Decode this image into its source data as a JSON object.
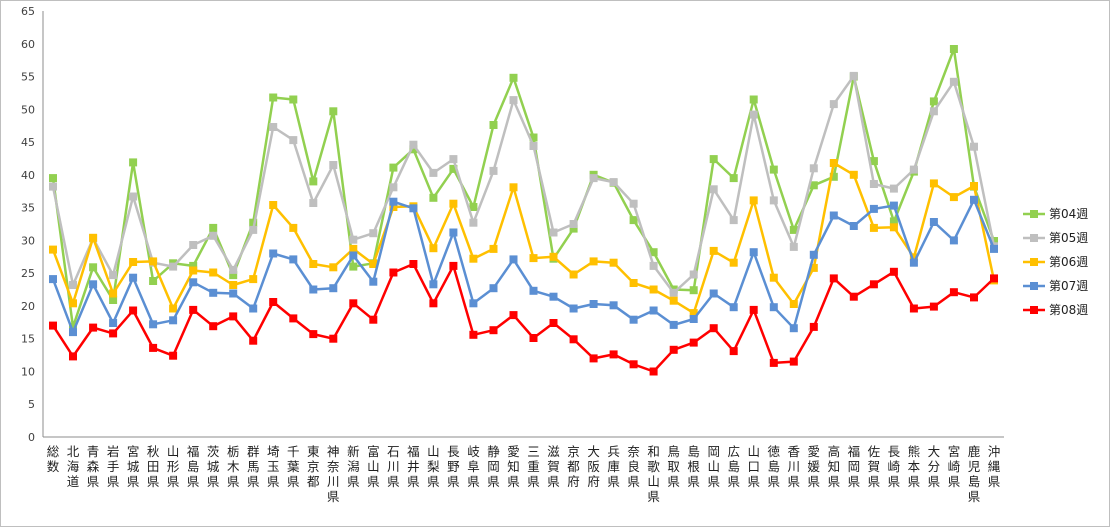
{
  "chart_data": {
    "type": "line",
    "title": "",
    "xlabel": "",
    "ylabel": "",
    "ylim": [
      0,
      65
    ],
    "yticks": [
      0,
      5,
      10,
      15,
      20,
      25,
      30,
      35,
      40,
      45,
      50,
      55,
      60,
      65
    ],
    "grid": false,
    "legend": "right",
    "marker": "square",
    "categories": [
      "総数",
      "北海道",
      "青森県",
      "岩手県",
      "宮城県",
      "秋田県",
      "山形県",
      "福島県",
      "茨城県",
      "栃木県",
      "群馬県",
      "埼玉県",
      "千葉県",
      "東京都",
      "神奈川県",
      "新潟県",
      "富山県",
      "石川県",
      "福井県",
      "山梨県",
      "長野県",
      "岐阜県",
      "静岡県",
      "愛知県",
      "三重県",
      "滋賀県",
      "京都府",
      "大阪府",
      "兵庫県",
      "奈良県",
      "和歌山県",
      "鳥取県",
      "島根県",
      "岡山県",
      "広島県",
      "山口県",
      "徳島県",
      "香川県",
      "愛媛県",
      "高知県",
      "福岡県",
      "佐賀県",
      "長崎県",
      "熊本県",
      "大分県",
      "宮崎県",
      "鹿児島県",
      "沖縄県"
    ],
    "series": [
      {
        "name": "第04週",
        "color": "#92d050",
        "values": [
          39.5,
          16.8,
          25.9,
          20.9,
          41.9,
          23.8,
          26.5,
          26.1,
          31.9,
          24.7,
          32.7,
          51.8,
          51.5,
          39.0,
          49.7,
          26.0,
          26.5,
          41.1,
          43.9,
          36.5,
          40.9,
          35.1,
          47.6,
          54.8,
          45.7,
          27.2,
          31.8,
          40.0,
          38.8,
          33.1,
          28.2,
          22.5,
          22.4,
          42.4,
          39.5,
          51.5,
          40.8,
          31.6,
          38.4,
          39.7,
          55.0,
          42.1,
          32.9,
          40.5,
          51.2,
          59.2,
          38.2,
          29.9
        ]
      },
      {
        "name": "第05週",
        "color": "#bfbfbf",
        "values": [
          38.2,
          23.2,
          30.3,
          24.7,
          36.7,
          26.6,
          26.0,
          29.3,
          30.7,
          25.5,
          31.6,
          47.3,
          45.3,
          35.7,
          41.5,
          30.1,
          31.1,
          38.1,
          44.6,
          40.3,
          42.4,
          32.7,
          40.6,
          51.4,
          44.4,
          31.2,
          32.5,
          39.5,
          38.9,
          35.6,
          26.1,
          22.0,
          24.8,
          37.8,
          33.1,
          49.2,
          36.1,
          29.0,
          41.0,
          50.8,
          55.1,
          38.6,
          37.9,
          40.8,
          49.7,
          54.2,
          44.3,
          29.1
        ]
      },
      {
        "name": "第06週",
        "color": "#ffc000",
        "values": [
          28.6,
          20.4,
          30.4,
          21.9,
          26.7,
          26.8,
          19.6,
          25.4,
          25.1,
          23.2,
          24.1,
          35.4,
          31.9,
          26.4,
          25.9,
          28.7,
          26.4,
          35.1,
          35.2,
          28.8,
          35.6,
          27.2,
          28.7,
          38.1,
          27.3,
          27.5,
          24.8,
          26.8,
          26.6,
          23.5,
          22.5,
          20.8,
          18.9,
          28.4,
          26.6,
          36.1,
          24.3,
          20.3,
          25.8,
          41.8,
          40.0,
          31.9,
          32.0,
          27.4,
          38.7,
          36.6,
          38.3,
          23.9
        ]
      },
      {
        "name": "第07週",
        "color": "#5b8fd3",
        "values": [
          24.1,
          16.0,
          23.3,
          17.4,
          24.3,
          17.2,
          17.8,
          23.6,
          22.0,
          21.9,
          19.6,
          28.0,
          27.1,
          22.5,
          22.7,
          27.7,
          23.7,
          35.9,
          34.9,
          23.3,
          31.2,
          20.4,
          22.7,
          27.1,
          22.3,
          21.4,
          19.6,
          20.3,
          20.1,
          17.9,
          19.3,
          17.1,
          18.0,
          21.9,
          19.8,
          28.2,
          19.8,
          16.6,
          27.8,
          33.8,
          32.2,
          34.8,
          35.3,
          26.6,
          32.8,
          30.0,
          36.2,
          28.7
        ]
      },
      {
        "name": "第08週",
        "color": "#ff0000",
        "values": [
          17.0,
          12.3,
          16.7,
          15.8,
          19.3,
          13.6,
          12.4,
          19.4,
          16.9,
          18.4,
          14.7,
          20.6,
          18.1,
          15.7,
          15.0,
          20.4,
          17.9,
          25.1,
          26.4,
          20.4,
          26.1,
          15.6,
          16.3,
          18.6,
          15.1,
          17.4,
          14.9,
          12.0,
          12.6,
          11.1,
          10.0,
          13.3,
          14.4,
          16.6,
          13.1,
          19.4,
          11.3,
          11.5,
          16.8,
          24.2,
          21.4,
          23.3,
          25.2,
          19.6,
          19.9,
          22.1,
          21.3,
          24.2
        ]
      }
    ]
  }
}
